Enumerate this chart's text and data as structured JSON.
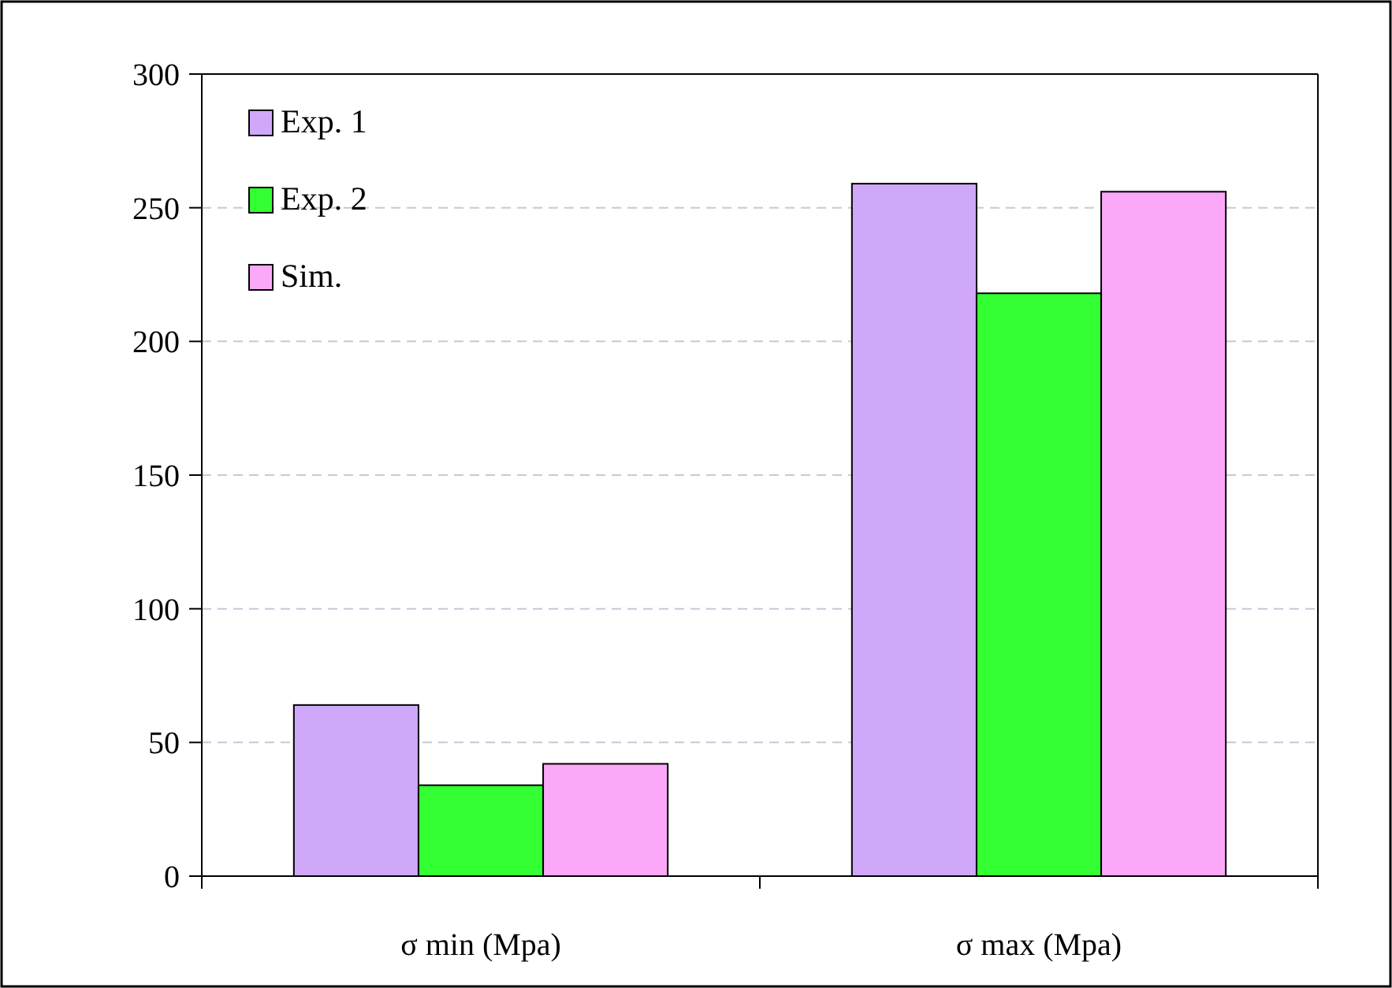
{
  "chart_data": {
    "type": "bar",
    "categories": [
      "σ min (Mpa)",
      "σ max (Mpa)"
    ],
    "series": [
      {
        "name": "Exp. 1",
        "color": "#d0a8fa",
        "values": [
          64,
          259
        ]
      },
      {
        "name": "Exp. 2",
        "color": "#33ff33",
        "values": [
          34,
          218
        ]
      },
      {
        "name": "Sim.",
        "color": "#fca8f8",
        "values": [
          42,
          256
        ]
      }
    ],
    "ylim": [
      0,
      300
    ],
    "yticks": [
      0,
      50,
      100,
      150,
      200,
      250,
      300
    ],
    "grid": "y",
    "legend": "top left"
  }
}
